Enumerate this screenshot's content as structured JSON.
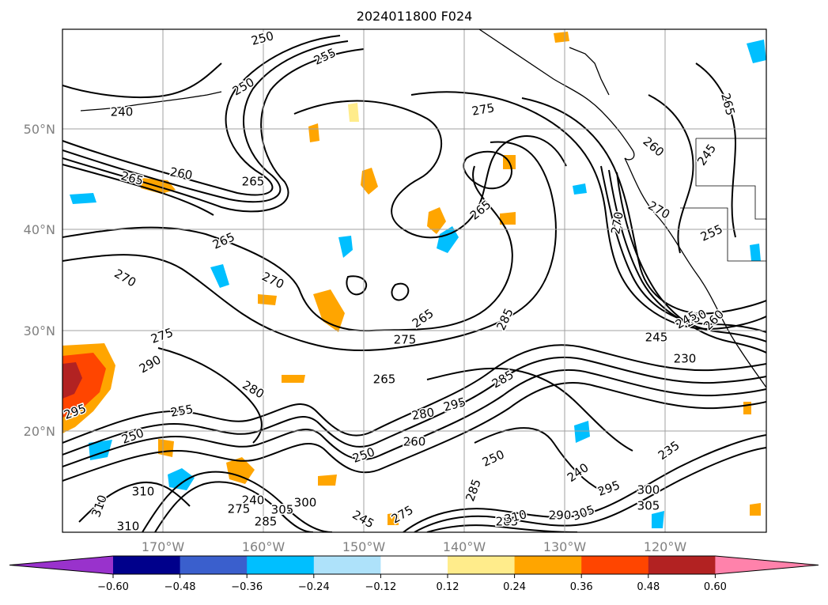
{
  "title": "2024011800 F024",
  "latitude_labels": [
    "50°N",
    "40°N",
    "30°N",
    "20°N"
  ],
  "longitude_labels": [
    "170°W",
    "160°W",
    "150°W",
    "140°W",
    "130°W",
    "120°W"
  ],
  "colorbar": {
    "ticks": [
      "−0.60",
      "−0.48",
      "−0.36",
      "−0.24",
      "−0.12",
      "0.12",
      "0.24",
      "0.36",
      "0.48",
      "0.60"
    ],
    "colors": [
      "#9932cc",
      "#00008b",
      "#3a5fcd",
      "#00bfff",
      "#aee2fa",
      "#ffffff",
      "#ffec8b",
      "#ffa500",
      "#ff4500",
      "#b22222",
      "#ff82ab"
    ]
  },
  "contour_labels": [
    {
      "text": "250"
    },
    {
      "text": "255"
    },
    {
      "text": "240"
    },
    {
      "text": "250"
    },
    {
      "text": "275"
    },
    {
      "text": "265"
    },
    {
      "text": "260"
    },
    {
      "text": "245"
    },
    {
      "text": "265"
    },
    {
      "text": "260"
    },
    {
      "text": "265"
    },
    {
      "text": "270"
    },
    {
      "text": "265"
    },
    {
      "text": "270"
    },
    {
      "text": "255"
    },
    {
      "text": "270"
    },
    {
      "text": "265"
    },
    {
      "text": "270"
    },
    {
      "text": "280"
    },
    {
      "text": "245"
    },
    {
      "text": "260"
    },
    {
      "text": "275"
    },
    {
      "text": "245"
    },
    {
      "text": "230"
    },
    {
      "text": "290"
    },
    {
      "text": "275"
    },
    {
      "text": "265"
    },
    {
      "text": "280"
    },
    {
      "text": "285"
    },
    {
      "text": "265"
    },
    {
      "text": "280"
    },
    {
      "text": "295"
    },
    {
      "text": "260"
    },
    {
      "text": "255"
    },
    {
      "text": "285"
    },
    {
      "text": "295"
    },
    {
      "text": "250"
    },
    {
      "text": "250"
    },
    {
      "text": "240"
    },
    {
      "text": "295"
    },
    {
      "text": "300"
    },
    {
      "text": "235"
    },
    {
      "text": "250"
    },
    {
      "text": "305"
    },
    {
      "text": "310"
    },
    {
      "text": "310"
    },
    {
      "text": "310"
    },
    {
      "text": "240"
    },
    {
      "text": "275"
    },
    {
      "text": "300"
    },
    {
      "text": "305"
    },
    {
      "text": "285"
    },
    {
      "text": "245"
    },
    {
      "text": "275"
    },
    {
      "text": "285"
    },
    {
      "text": "310"
    },
    {
      "text": "290"
    },
    {
      "text": "305"
    },
    {
      "text": "285"
    }
  ]
}
